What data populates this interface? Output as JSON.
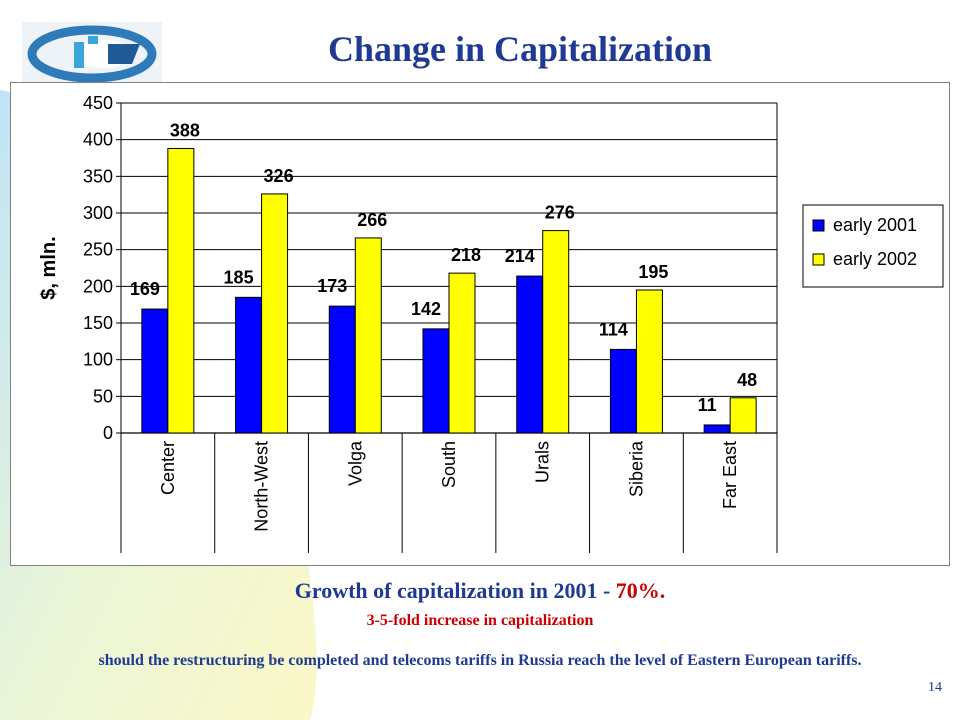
{
  "slide": {
    "title": "Change in Capitalization",
    "page_number": "14",
    "logo_icon": "company-logo-icon"
  },
  "captions": {
    "line1_main": "Growth of capitalization in 2001 - ",
    "line1_highlight": "70%.",
    "line2": "3-5-fold increase in capitalization",
    "line3": "should the restructuring be completed and telecoms tariffs in Russia reach the level of Eastern European tariffs."
  },
  "colors": {
    "title": "#1f3a93",
    "highlight": "#cc0000",
    "series_2001": "#0000ff",
    "series_2002": "#ffff00"
  },
  "chart_data": {
    "type": "bar",
    "title": "",
    "xlabel": "",
    "ylabel": "$, mln.",
    "ylim": [
      0,
      450
    ],
    "yticks": [
      0,
      50,
      100,
      150,
      200,
      250,
      300,
      350,
      400,
      450
    ],
    "grid": true,
    "legend_position": "right",
    "categories": [
      "Center",
      "North-West",
      "Volga",
      "South",
      "Urals",
      "Siberia",
      "Far East"
    ],
    "series": [
      {
        "name": "early 2001",
        "color": "#0000ff",
        "values": [
          169,
          185,
          173,
          142,
          214,
          114,
          11
        ]
      },
      {
        "name": "early 2002",
        "color": "#ffff00",
        "values": [
          388,
          326,
          266,
          218,
          276,
          195,
          48
        ]
      }
    ]
  }
}
